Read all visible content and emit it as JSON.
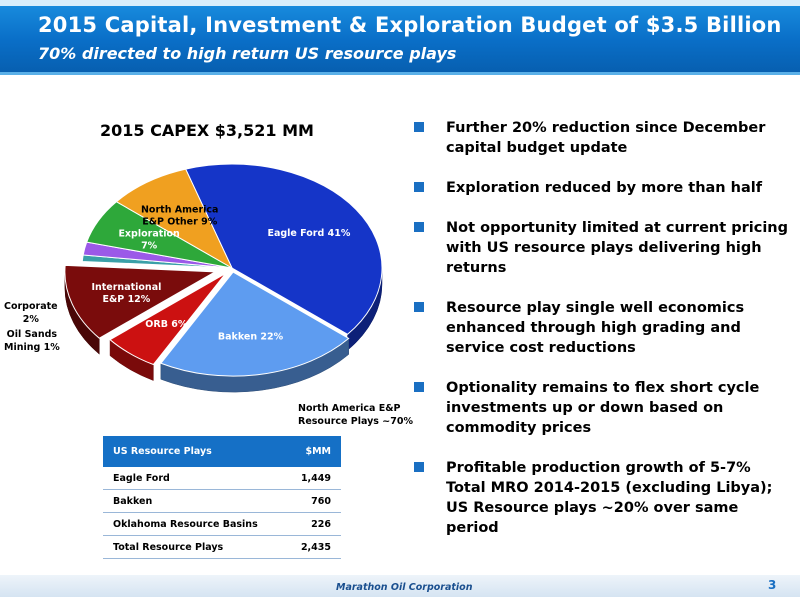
{
  "header": {
    "title": "2015 Capital, Investment & Exploration Budget of $3.5 Billion",
    "subtitle": "70% directed to high return US resource plays"
  },
  "chart_data": {
    "type": "pie",
    "title": "2015 CAPEX $3,521 MM",
    "slices": [
      {
        "name": "Eagle Ford",
        "label_lines": [
          "Eagle Ford 41%"
        ],
        "value": 41,
        "color": "#1535c8"
      },
      {
        "name": "Bakken",
        "label_lines": [
          "Bakken 22%"
        ],
        "value": 22,
        "color": "#5e9cf0"
      },
      {
        "name": "ORB",
        "label_lines": [
          "ORB 6%"
        ],
        "value": 6,
        "color": "#cc1111"
      },
      {
        "name": "International E&P",
        "label_lines": [
          "International",
          "E&P 12%"
        ],
        "value": 12,
        "color": "#7a0c0c"
      },
      {
        "name": "Oil Sands Mining",
        "label_lines": [],
        "value": 1,
        "color": "#3aa0a8"
      },
      {
        "name": "Corporate",
        "label_lines": [],
        "value": 2,
        "color": "#9b59e8"
      },
      {
        "name": "Exploration",
        "label_lines": [
          "Exploration",
          "7%"
        ],
        "value": 7,
        "color": "#2ea83a"
      },
      {
        "name": "North America E&P Other",
        "label_lines": [
          "North America",
          "E&P Other 9%"
        ],
        "value": 9,
        "color": "#f0a020"
      }
    ],
    "outside_labels": {
      "corporate": [
        "Corporate",
        "2%"
      ],
      "oil_sands": [
        "Oil Sands",
        "Mining 1%"
      ],
      "resource_plays": [
        "North America E&P",
        "Resource Plays ~70%"
      ]
    }
  },
  "table": {
    "headers": [
      "US Resource Plays",
      "$MM"
    ],
    "rows": [
      [
        "Eagle Ford",
        "1,449"
      ],
      [
        "Bakken",
        "760"
      ],
      [
        "Oklahoma Resource Basins",
        "226"
      ],
      [
        "Total Resource Plays",
        "2,435"
      ]
    ]
  },
  "bullets": [
    "Further 20% reduction since December capital budget update",
    "Exploration reduced by more than half",
    "Not opportunity limited at current pricing with US resource plays delivering high returns",
    "Resource play single well economics enhanced through high grading and service cost reductions",
    "Optionality remains to flex short cycle investments up or down based on commodity prices",
    "Profitable production growth of 5-7% Total MRO 2014-2015 (excluding Libya); US Resource plays ~20% over same period"
  ],
  "footer": {
    "company": "Marathon Oil Corporation",
    "page": "3"
  }
}
